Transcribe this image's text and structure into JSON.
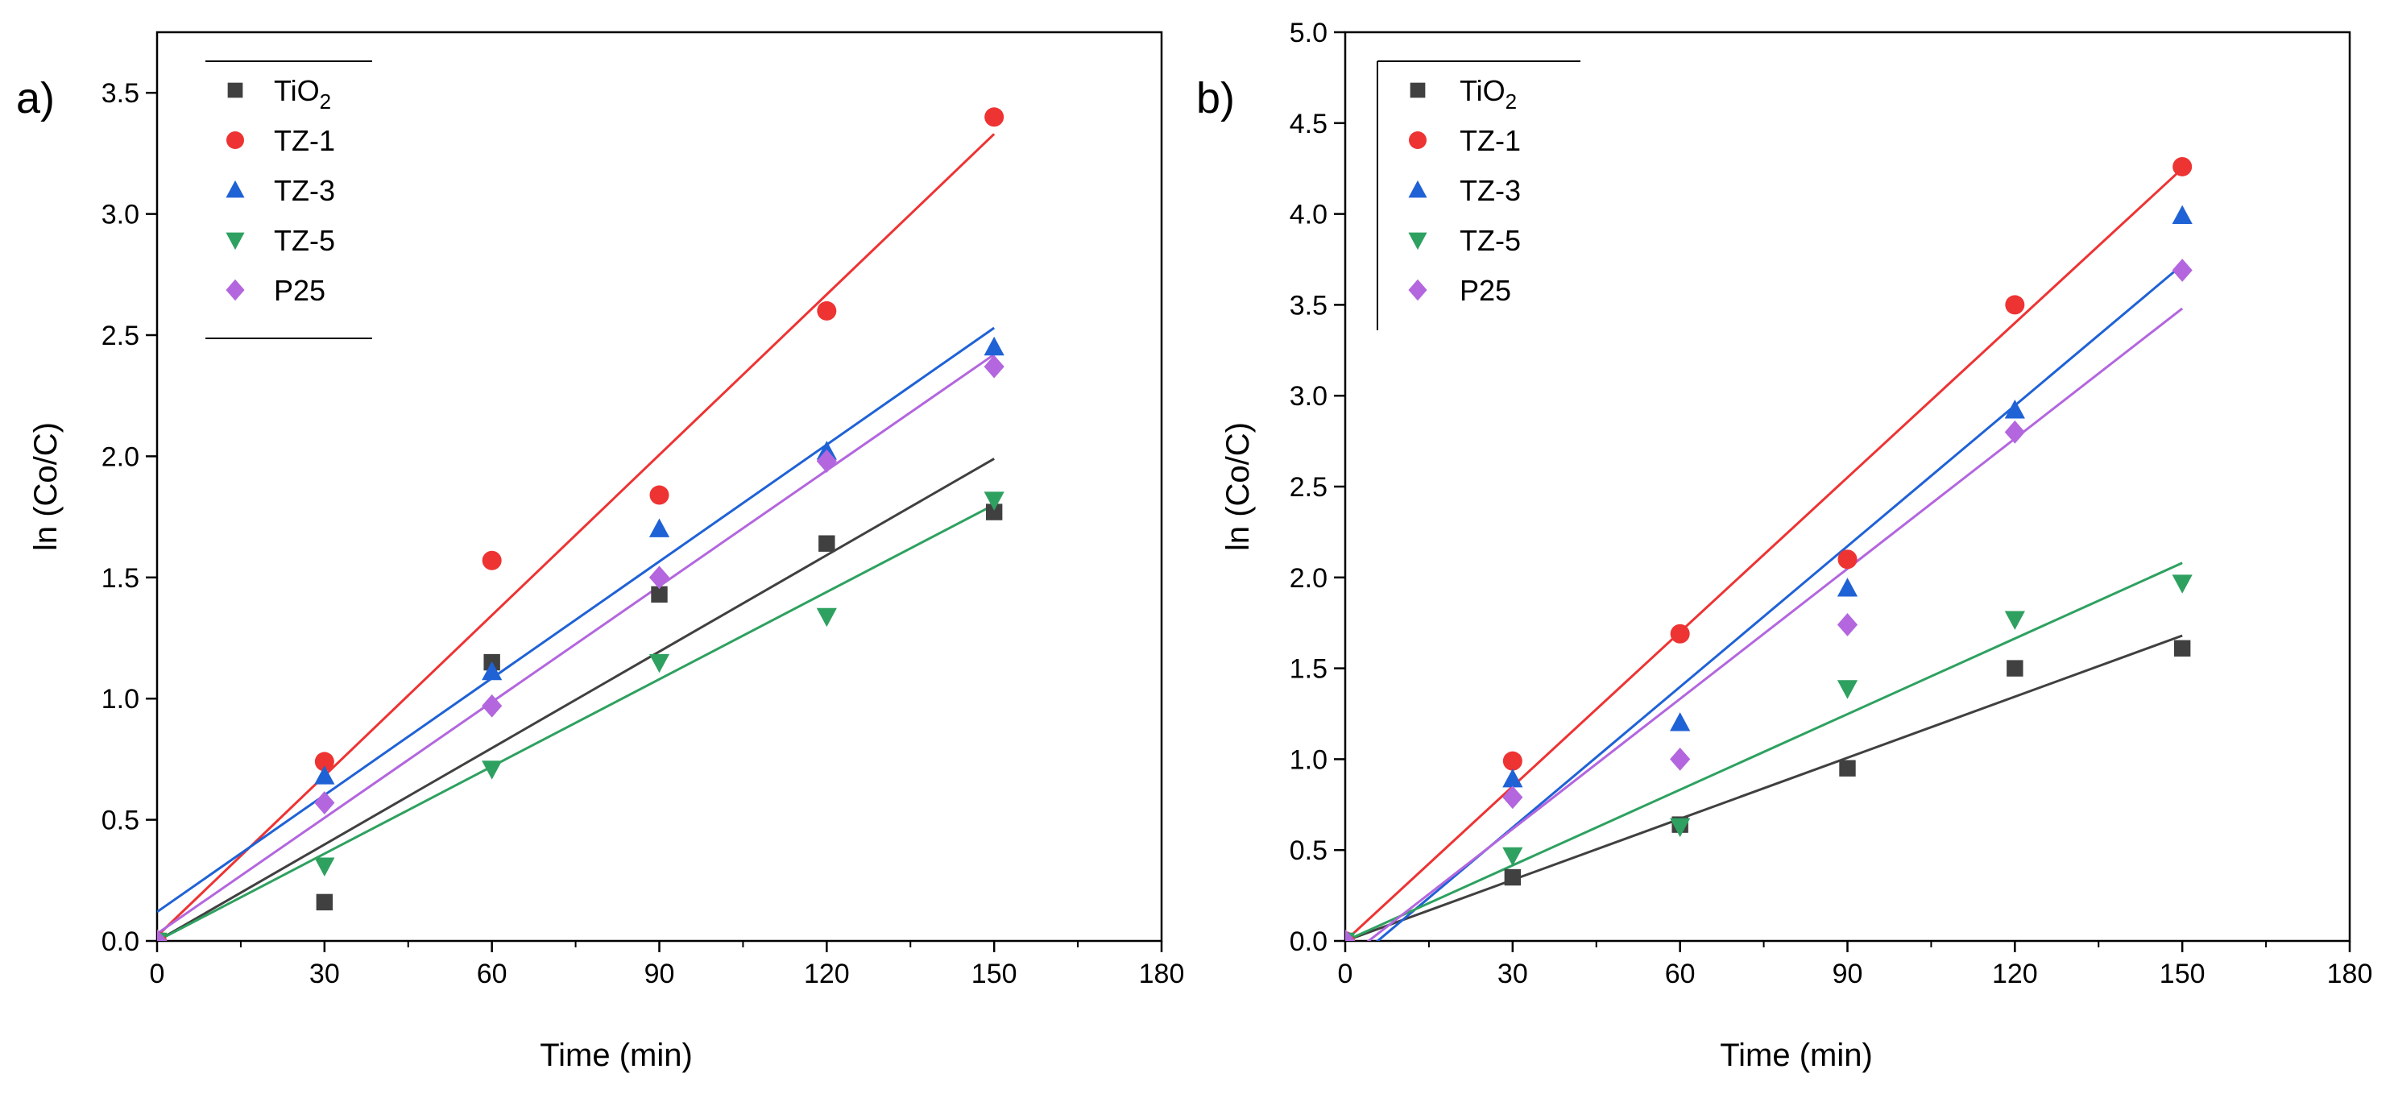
{
  "chart_data": [
    {
      "type": "scatter",
      "panel_label": "a)",
      "xlabel": "Time (min)",
      "ylabel": "ln (Co/C)",
      "xlim": [
        0,
        180
      ],
      "ylim": [
        0,
        3.75
      ],
      "xticks": [
        "0",
        "30",
        "60",
        "90",
        "120",
        "150",
        "180"
      ],
      "yticks": [
        "0.0",
        "0.5",
        "1.0",
        "1.5",
        "2.0",
        "2.5",
        "3.0",
        "3.5"
      ],
      "legend_position": "top-left",
      "x": [
        0,
        30,
        60,
        90,
        120,
        150
      ],
      "series": [
        {
          "name": "TiO",
          "name_sub": "2",
          "marker": "square",
          "color": "#404040",
          "values": [
            0,
            0.16,
            1.15,
            1.43,
            1.64,
            1.77
          ],
          "fit": [
            0,
            1.99
          ]
        },
        {
          "name": "TZ-1",
          "marker": "circle",
          "color": "#ee3333",
          "values": [
            0,
            0.74,
            1.57,
            1.84,
            2.6,
            3.4
          ],
          "fit": [
            0.02,
            3.33
          ]
        },
        {
          "name": "TZ-3",
          "marker": "triangle-up",
          "color": "#1f62d6",
          "values": [
            0,
            0.68,
            1.11,
            1.7,
            2.02,
            2.45
          ],
          "fit": [
            0.12,
            2.53
          ]
        },
        {
          "name": "TZ-5",
          "marker": "triangle-down",
          "color": "#2ea160",
          "values": [
            0,
            0.31,
            0.71,
            1.15,
            1.34,
            1.82
          ],
          "fit": [
            0,
            1.8
          ]
        },
        {
          "name": "P25",
          "marker": "diamond",
          "color": "#b366de",
          "values": [
            0,
            0.57,
            0.97,
            1.5,
            1.98,
            2.37
          ],
          "fit": [
            0.03,
            2.42
          ]
        }
      ]
    },
    {
      "type": "scatter",
      "panel_label": "b)",
      "xlabel": "Time (min)",
      "ylabel": "ln (Co/C)",
      "xlim": [
        0,
        180
      ],
      "ylim": [
        0,
        5.0
      ],
      "xticks": [
        "0",
        "30",
        "60",
        "90",
        "120",
        "150",
        "180"
      ],
      "yticks": [
        "0.0",
        "0.5",
        "1.0",
        "1.5",
        "2.0",
        "2.5",
        "3.0",
        "3.5",
        "4.0",
        "4.5",
        "5.0"
      ],
      "legend_position": "top-left",
      "x": [
        0,
        30,
        60,
        90,
        120,
        150
      ],
      "series": [
        {
          "name": "TiO",
          "name_sub": "2",
          "marker": "square",
          "color": "#404040",
          "values": [
            0,
            0.35,
            0.64,
            0.95,
            1.5,
            1.61
          ],
          "fit": [
            0,
            1.68
          ]
        },
        {
          "name": "TZ-1",
          "marker": "circle",
          "color": "#ee3333",
          "values": [
            0,
            0.99,
            1.69,
            2.1,
            3.5,
            4.26
          ],
          "fit": [
            0,
            4.25
          ]
        },
        {
          "name": "TZ-3",
          "marker": "triangle-up",
          "color": "#1f62d6",
          "values": [
            0,
            0.89,
            1.2,
            1.94,
            2.92,
            3.99
          ],
          "fit": [
            -0.15,
            3.72
          ]
        },
        {
          "name": "TZ-5",
          "marker": "triangle-down",
          "color": "#2ea160",
          "values": [
            0,
            0.47,
            0.63,
            1.39,
            1.77,
            1.97
          ],
          "fit": [
            0,
            2.08
          ]
        },
        {
          "name": "P25",
          "marker": "diamond",
          "color": "#b366de",
          "values": [
            0,
            0.79,
            1.0,
            1.74,
            2.8,
            3.69
          ],
          "fit": [
            -0.1,
            3.48
          ]
        }
      ]
    }
  ]
}
